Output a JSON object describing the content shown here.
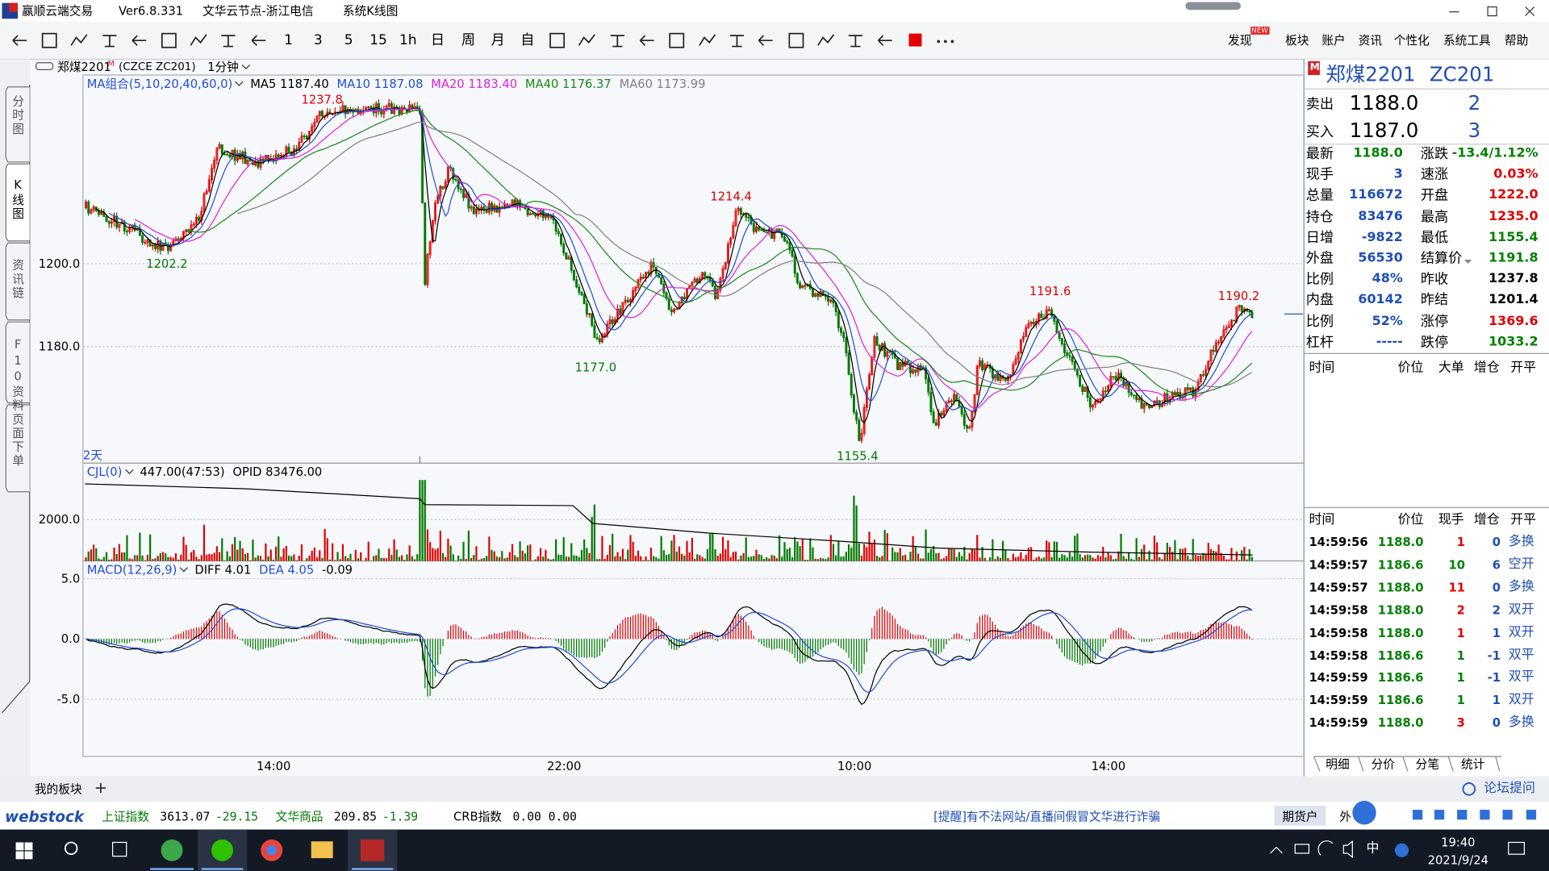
{
  "title_bar": {
    "app_name": "赢顺云端交易",
    "version": "Ver6.8.331",
    "node": "文华云节点-浙江电信",
    "view": "系统K线图"
  },
  "toolbar": {
    "periods": [
      "1",
      "3",
      "5",
      "15",
      "1h",
      "日",
      "周",
      "月",
      "自"
    ],
    "badge": "NEW",
    "menus": [
      "发现",
      "板块",
      "账户",
      "资讯",
      "个性化",
      "系统工具",
      "帮助"
    ]
  },
  "side_tabs": [
    "分时图",
    "K线图",
    "资讯链",
    "F10资料",
    "页面下单"
  ],
  "chart_header": {
    "symbol": "郑煤2201",
    "flag": "M",
    "code": "(CZCE ZC201)",
    "period": "1分钟"
  },
  "price_panel": {
    "indicator": "MA组合(5,10,20,40,60,0)",
    "ma": [
      {
        "label": "MA5 1187.40",
        "color": "#000000"
      },
      {
        "label": "MA10 1187.08",
        "color": "#1f4fd6"
      },
      {
        "label": "MA20 1183.40",
        "color": "#e020e0"
      },
      {
        "label": "MA40 1176.37",
        "color": "#178a17"
      },
      {
        "label": "MA60 1173.99",
        "color": "#808080"
      }
    ],
    "yticks": [
      "1200.0",
      "1180.0"
    ],
    "annotations": [
      {
        "text": "1237.8",
        "color": "#e00000"
      },
      {
        "text": "1202.2",
        "color": "#007a00"
      },
      {
        "text": "1214.4",
        "color": "#e00000"
      },
      {
        "text": "1177.0",
        "color": "#007a00"
      },
      {
        "text": "1191.6",
        "color": "#e00000"
      },
      {
        "text": "1155.4",
        "color": "#007a00"
      },
      {
        "text": "1190.2",
        "color": "#e00000"
      }
    ],
    "span": "2天"
  },
  "volume_panel": {
    "indicator": "CJL(0)",
    "reading": "447.00(47:53)",
    "opid": "OPID 83476.00",
    "yticks": [
      "2000.0"
    ]
  },
  "macd_panel": {
    "indicator": "MACD(12,26,9)",
    "diff": "DIFF 4.01",
    "dea": "DEA 4.05",
    "macd": "-0.09",
    "yticks": [
      "5.0",
      "0.0",
      "-5.0"
    ]
  },
  "time_axis": [
    "14:00",
    "22:00",
    "10:00",
    "14:00"
  ],
  "quote": {
    "flag": "M",
    "symbol": "郑煤2201",
    "code": "ZC201",
    "ask": {
      "label": "卖出",
      "price": "1188.0",
      "volume": "2"
    },
    "bid": {
      "label": "买入",
      "price": "1187.0",
      "volume": "3"
    },
    "rows": [
      {
        "label": "最新",
        "value": "1188.0",
        "value_color": "#008000",
        "label2": "涨跌",
        "value2": "-13.4/1.12%",
        "value2_color": "#008000"
      },
      {
        "label": "现手",
        "value": "3",
        "value_color": "#1f4fb0",
        "label2": "速涨",
        "value2": "0.03%",
        "value2_color": "#e00000"
      },
      {
        "label": "总量",
        "value": "116672",
        "value_color": "#1f4fb0",
        "label2": "开盘",
        "value2": "1222.0",
        "value2_color": "#e00000"
      },
      {
        "label": "持仓",
        "value": "83476",
        "value_color": "#1f4fb0",
        "label2": "最高",
        "value2": "1235.0",
        "value2_color": "#e00000"
      },
      {
        "label": "日增",
        "value": "-9822",
        "value_color": "#1f4fb0",
        "label2": "最低",
        "value2": "1155.4",
        "value2_color": "#008000"
      },
      {
        "label": "外盘",
        "value": "56530",
        "value_color": "#1f4fb0",
        "label2": "结算价",
        "value2": "1191.8",
        "value2_color": "#008000"
      },
      {
        "label": "比例",
        "value": "48%",
        "value_color": "#1f4fb0",
        "label2": "昨收",
        "value2": "1237.8",
        "value2_color": "#000000"
      },
      {
        "label": "内盘",
        "value": "60142",
        "value_color": "#1f4fb0",
        "label2": "昨结",
        "value2": "1201.4",
        "value2_color": "#000000"
      },
      {
        "label": "比例",
        "value": "52%",
        "value_color": "#1f4fb0",
        "label2": "涨停",
        "value2": "1369.6",
        "value2_color": "#e00000"
      },
      {
        "label": "杠杆",
        "value": "-----",
        "value_color": "#1f4fb0",
        "label2": "跌停",
        "value2": "1033.2",
        "value2_color": "#008000"
      }
    ],
    "detail_header": [
      "时间",
      "价位",
      "大单",
      "增仓",
      "开平"
    ],
    "trades_header": [
      "时间",
      "价位",
      "现手",
      "增仓",
      "开平"
    ],
    "trades": [
      {
        "time": "14:59:56",
        "price": "1188.0",
        "qty": "1",
        "change": "0",
        "kind": "多换",
        "qty_color": "#e00000"
      },
      {
        "time": "14:59:57",
        "price": "1186.6",
        "qty": "10",
        "change": "6",
        "kind": "空开",
        "qty_color": "#008000"
      },
      {
        "time": "14:59:57",
        "price": "1188.0",
        "qty": "11",
        "change": "0",
        "kind": "多换",
        "qty_color": "#e00000"
      },
      {
        "time": "14:59:58",
        "price": "1188.0",
        "qty": "2",
        "change": "2",
        "kind": "双开",
        "qty_color": "#e00000"
      },
      {
        "time": "14:59:58",
        "price": "1188.0",
        "qty": "1",
        "change": "1",
        "kind": "双开",
        "qty_color": "#e00000"
      },
      {
        "time": "14:59:58",
        "price": "1186.6",
        "qty": "1",
        "change": "-1",
        "kind": "双平",
        "qty_color": "#008000"
      },
      {
        "time": "14:59:59",
        "price": "1186.6",
        "qty": "1",
        "change": "-1",
        "kind": "双平",
        "qty_color": "#008000"
      },
      {
        "time": "14:59:59",
        "price": "1186.6",
        "qty": "1",
        "change": "1",
        "kind": "双开",
        "qty_color": "#008000"
      },
      {
        "time": "14:59:59",
        "price": "1188.0",
        "qty": "3",
        "change": "0",
        "kind": "多换",
        "qty_color": "#e00000"
      }
    ],
    "price_color": "#008000",
    "tabs": [
      "明细",
      "分价",
      "分笔",
      "统计"
    ]
  },
  "bottom_bar": {
    "group": "我的板块",
    "forum": "论坛提问"
  },
  "ticker": {
    "logo_a": "web",
    "logo_b": "stock",
    "indices": [
      {
        "name": "上证指数",
        "value": "3613.07",
        "change": "-29.15",
        "name_color": "#007a00"
      },
      {
        "name": "文华商品",
        "value": "209.85",
        "change": "-1.39",
        "name_color": "#007a00"
      },
      {
        "name": "CRB指数",
        "value": "0.00",
        "change": "0.00",
        "name_color": "#000000"
      }
    ],
    "notice": "[提醒]有不法网站/直播间假冒文华进行诈骗",
    "account": "期货户",
    "outer": "外"
  },
  "taskbar": {
    "ime": "中",
    "time": "19:40",
    "date": "2021/9/24"
  }
}
